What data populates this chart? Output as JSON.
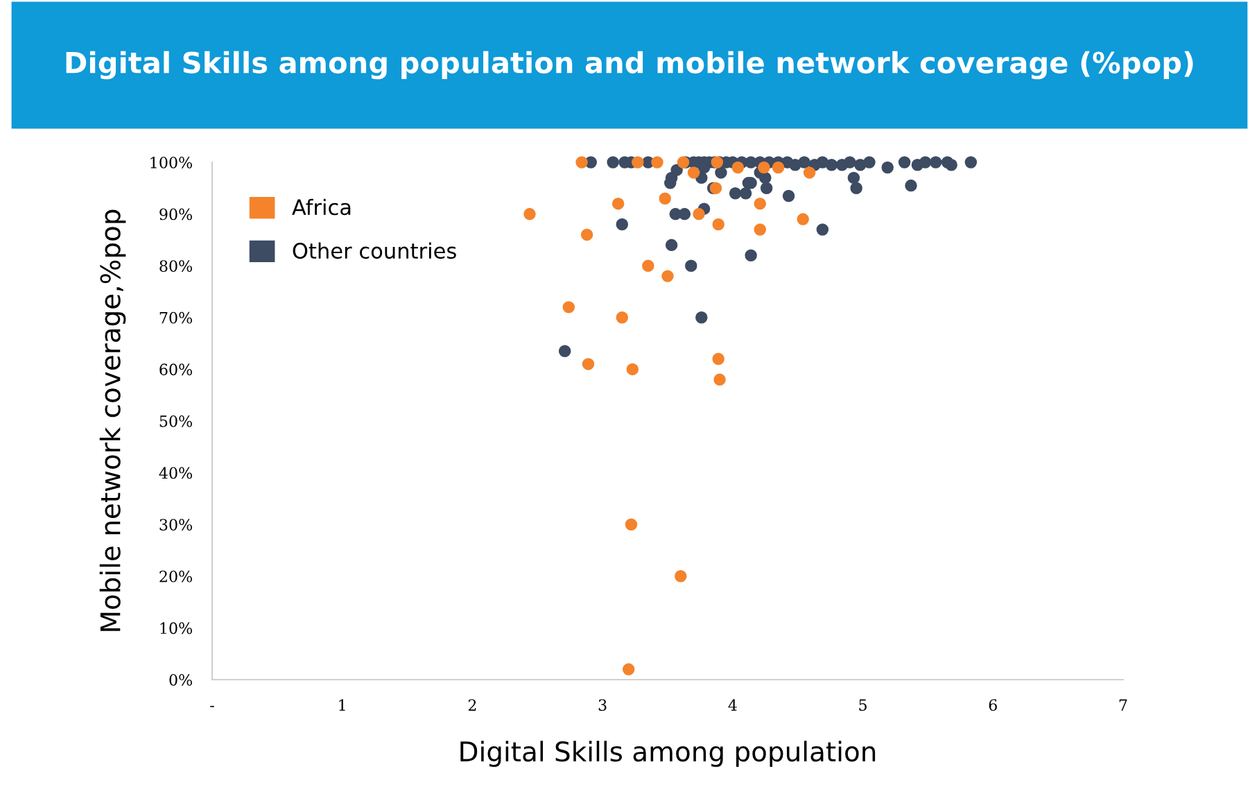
{
  "chart_data": {
    "type": "scatter",
    "title": "Digital Skills among population and mobile network coverage (%pop)",
    "xlabel": "Digital Skills among population",
    "ylabel": "Mobile network coverage,%pop",
    "xlim": [
      0,
      7
    ],
    "ylim": [
      0,
      100
    ],
    "xticks": [
      {
        "value": 0,
        "label": "-"
      },
      1,
      2,
      3,
      4,
      5,
      6,
      7
    ],
    "yticks": [
      {
        "value": 0,
        "label": "0%"
      },
      {
        "value": 10,
        "label": "10%"
      },
      {
        "value": 20,
        "label": "20%"
      },
      {
        "value": 30,
        "label": "30%"
      },
      {
        "value": 40,
        "label": "40%"
      },
      {
        "value": 50,
        "label": "50%"
      },
      {
        "value": 60,
        "label": "60%"
      },
      {
        "value": 70,
        "label": "70%"
      },
      {
        "value": 80,
        "label": "80%"
      },
      {
        "value": 90,
        "label": "90%"
      },
      {
        "value": 100,
        "label": "100%"
      }
    ],
    "grid": false,
    "legend": "top left",
    "marker": "circle",
    "series": [
      {
        "name": "Other countries",
        "color": "#3d4b63",
        "x": [
          2.91,
          3.08,
          3.17,
          3.22,
          3.35,
          3.53,
          3.57,
          3.52,
          3.64,
          3.7,
          3.74,
          3.78,
          3.82,
          3.86,
          3.9,
          3.95,
          4.0,
          3.76,
          3.91,
          3.85,
          3.78,
          4.02,
          4.1,
          4.12,
          3.56,
          3.63,
          3.78,
          3.15,
          3.53,
          3.68,
          4.14,
          4.26,
          4.43,
          4.69,
          4.14,
          4.93,
          4.95,
          5.37,
          5.83,
          5.68,
          5.65,
          5.56,
          5.48,
          5.42,
          5.32,
          5.19,
          5.05,
          4.98,
          4.9,
          4.84,
          4.76,
          4.69,
          4.63,
          4.55,
          4.48,
          4.42,
          4.35,
          4.28,
          4.21,
          4.14,
          4.07,
          4.21,
          4.25,
          3.76,
          2.71
        ],
        "values": [
          100,
          100,
          100,
          100,
          100,
          97,
          98.5,
          96,
          100,
          100,
          100,
          100,
          100,
          100,
          100,
          100,
          100,
          97,
          98,
          95,
          99,
          94,
          94,
          96,
          90,
          90,
          91,
          88,
          84,
          80,
          96,
          95,
          93.5,
          87,
          82,
          97,
          95,
          95.5,
          100,
          99.5,
          100,
          100,
          100,
          99.5,
          100,
          99,
          100,
          99.5,
          100,
          99.5,
          99.5,
          100,
          99.5,
          100,
          99.5,
          100,
          100,
          100,
          100,
          100,
          100,
          98,
          97,
          70,
          63.5
        ]
      },
      {
        "name": "Africa",
        "color": "#f4832c",
        "x": [
          2.84,
          2.44,
          2.88,
          3.12,
          3.35,
          3.48,
          3.5,
          2.74,
          3.15,
          2.89,
          3.23,
          3.42,
          3.27,
          3.62,
          3.7,
          3.88,
          4.04,
          3.87,
          3.74,
          3.89,
          4.35,
          4.59,
          4.21,
          4.54,
          4.21,
          4.24,
          3.89,
          3.9,
          3.22,
          3.6,
          3.2
        ],
        "values": [
          100,
          90,
          86,
          92,
          80,
          93,
          78,
          72,
          70,
          61,
          60,
          100,
          100,
          100,
          98,
          100,
          99,
          95,
          90,
          88,
          99,
          98,
          92,
          89,
          87,
          99,
          62,
          58,
          30,
          20,
          2
        ]
      }
    ]
  }
}
